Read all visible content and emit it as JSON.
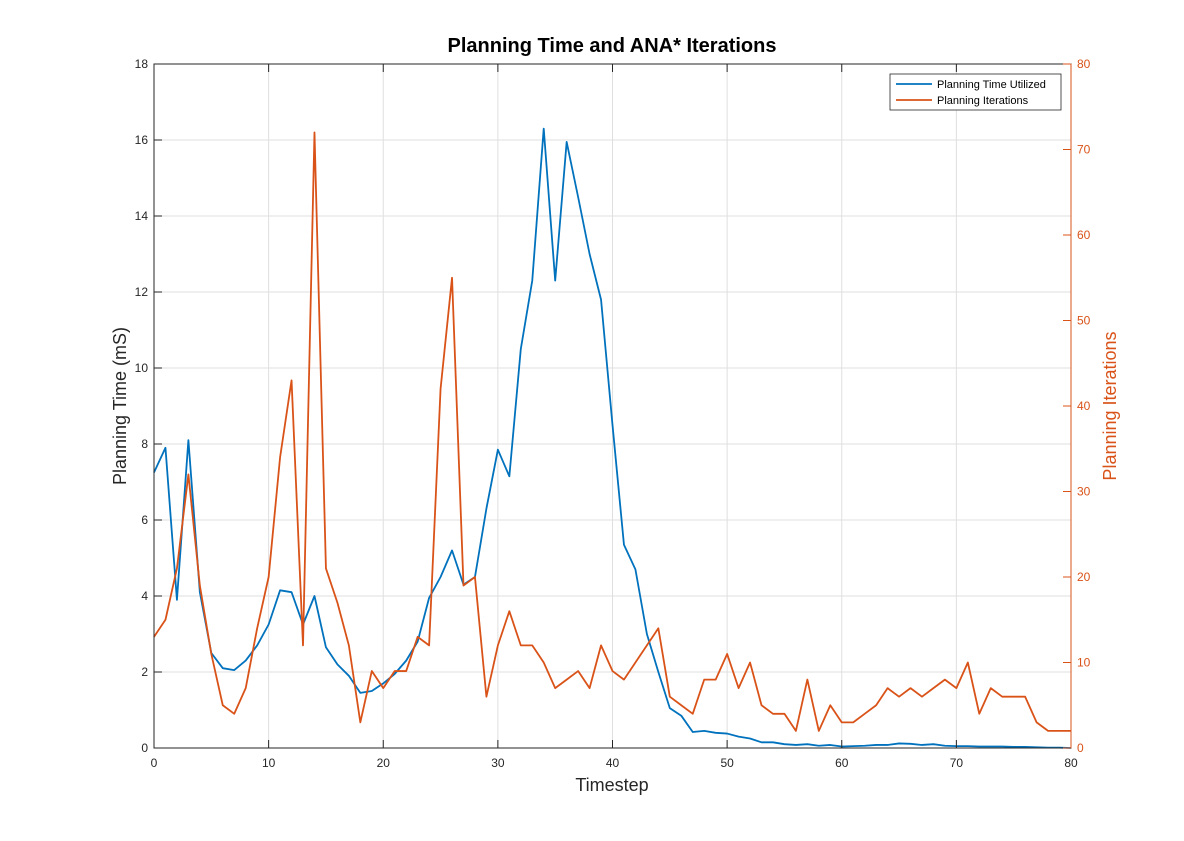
{
  "chart_data": {
    "type": "line",
    "title": "Planning Time and ANA* Iterations",
    "xlabel": "Timestep",
    "ylabel_left": "Planning Time (mS)",
    "ylabel_right": "Planning Iterations",
    "xlim": [
      0,
      80
    ],
    "ylim_left": [
      0,
      18
    ],
    "ylim_right": [
      0,
      80
    ],
    "xticks": [
      0,
      10,
      20,
      30,
      40,
      50,
      60,
      70,
      80
    ],
    "yticks_left": [
      0,
      2,
      4,
      6,
      8,
      10,
      12,
      14,
      16,
      18
    ],
    "yticks_right": [
      0,
      10,
      20,
      30,
      40,
      50,
      60,
      70,
      80
    ],
    "grid": true,
    "legend_position": "top-right",
    "colors": {
      "left": "#0072bd",
      "right": "#d95319",
      "axis": "#262626",
      "grid": "#dfdfdf"
    },
    "series": [
      {
        "name": "Planning Time Utilized",
        "axis": "left",
        "x": [
          0,
          1,
          2,
          3,
          4,
          5,
          6,
          7,
          8,
          9,
          10,
          11,
          12,
          13,
          14,
          15,
          16,
          17,
          18,
          19,
          20,
          21,
          22,
          23,
          24,
          25,
          26,
          27,
          28,
          29,
          30,
          31,
          32,
          33,
          34,
          35,
          36,
          37,
          38,
          39,
          40,
          41,
          42,
          43,
          44,
          45,
          46,
          47,
          48,
          49,
          50,
          51,
          52,
          53,
          54,
          55,
          56,
          57,
          58,
          59,
          60,
          61,
          62,
          63,
          64,
          65,
          66,
          67,
          68,
          69,
          70,
          71,
          72,
          73,
          74,
          75,
          76,
          77,
          78,
          79,
          80
        ],
        "values": [
          7.25,
          7.9,
          3.9,
          8.1,
          4.1,
          2.5,
          2.1,
          2.05,
          2.3,
          2.7,
          3.25,
          4.15,
          4.1,
          3.25,
          4.0,
          2.65,
          2.2,
          1.9,
          1.45,
          1.5,
          1.7,
          1.95,
          2.3,
          2.8,
          3.95,
          4.5,
          5.2,
          4.3,
          4.5,
          6.3,
          7.85,
          7.15,
          10.5,
          12.3,
          16.3,
          12.3,
          15.95,
          14.5,
          13.0,
          11.8,
          8.5,
          5.35,
          4.7,
          3.0,
          2.0,
          1.05,
          0.85,
          0.42,
          0.45,
          0.4,
          0.38,
          0.3,
          0.25,
          0.15,
          0.15,
          0.1,
          0.08,
          0.1,
          0.06,
          0.08,
          0.04,
          0.05,
          0.06,
          0.08,
          0.08,
          0.12,
          0.11,
          0.08,
          0.1,
          0.06,
          0.05,
          0.05,
          0.04,
          0.04,
          0.04,
          0.03,
          0.03,
          0.02,
          0.01,
          0.01,
          0.0
        ]
      },
      {
        "name": "Planning Iterations",
        "axis": "right",
        "x": [
          0,
          1,
          2,
          3,
          4,
          5,
          6,
          7,
          8,
          9,
          10,
          11,
          12,
          13,
          14,
          15,
          16,
          17,
          18,
          19,
          20,
          21,
          22,
          23,
          24,
          25,
          26,
          27,
          28,
          29,
          30,
          31,
          32,
          33,
          34,
          35,
          36,
          37,
          38,
          39,
          40,
          41,
          42,
          43,
          44,
          45,
          46,
          47,
          48,
          49,
          50,
          51,
          52,
          53,
          54,
          55,
          56,
          57,
          58,
          59,
          60,
          61,
          62,
          63,
          64,
          65,
          66,
          67,
          68,
          69,
          70,
          71,
          72,
          73,
          74,
          75,
          76,
          77,
          78,
          79,
          80
        ],
        "values": [
          13,
          15,
          21,
          32,
          19,
          11,
          5,
          4,
          7,
          14,
          20,
          34,
          43,
          12,
          72,
          21,
          17,
          12,
          3,
          9,
          7,
          9,
          9,
          13,
          12,
          42,
          55,
          19,
          20,
          6,
          12,
          16,
          12,
          12,
          10,
          7,
          8,
          9,
          7,
          12,
          9,
          8,
          10,
          12,
          14,
          6,
          5,
          4,
          8,
          8,
          11,
          7,
          10,
          5,
          4,
          4,
          2,
          8,
          2,
          5,
          3,
          3,
          4,
          5,
          7,
          6,
          7,
          6,
          7,
          8,
          7,
          10,
          4,
          7,
          6,
          6,
          6,
          3,
          2,
          2,
          2
        ]
      }
    ]
  }
}
